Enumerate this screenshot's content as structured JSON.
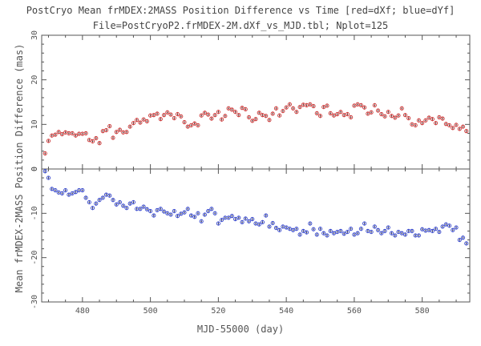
{
  "title": "PostCryo Mean frMDEX:2MASS Position Difference vs Time [red=dXf; blue=dYf]",
  "subtitle": "File=PostCryoP2.frMDEX-2M.dXf_vs_MJD.tbl; Nplot=125",
  "xlabel": "MJD-55000 (day)",
  "ylabel": "Mean frMDEX-2MASS Position Difference (mas)",
  "colors": {
    "red": "#cc3333",
    "blue": "#3344cc",
    "axis": "#555555"
  },
  "chart_data": [
    {
      "type": "scatter",
      "panel": "top",
      "xlim": [
        468,
        594
      ],
      "ylim": [
        0,
        30
      ],
      "yticks": [
        0,
        10,
        20,
        30
      ],
      "xticks": [
        480,
        500,
        520,
        540,
        560,
        580
      ],
      "series": [
        {
          "color": "red",
          "x": [
            469,
            470,
            471,
            472,
            473,
            474,
            475,
            476,
            477,
            478,
            479,
            480,
            481,
            482,
            483,
            484,
            485,
            486,
            487,
            488,
            489,
            490,
            491,
            492,
            493,
            494,
            495,
            496,
            497,
            498,
            499,
            500,
            501,
            502,
            503,
            504,
            505,
            506,
            507,
            508,
            509,
            510,
            511,
            512,
            513,
            514,
            515,
            516,
            517,
            518,
            519,
            520,
            521,
            522,
            523,
            524,
            525,
            526,
            527,
            528,
            529,
            530,
            531,
            532,
            533,
            534,
            535,
            536,
            537,
            538,
            539,
            540,
            541,
            542,
            543,
            544,
            545,
            546,
            547,
            548,
            549,
            550,
            551,
            552,
            553,
            554,
            555,
            556,
            557,
            558,
            559,
            560,
            561,
            562,
            563,
            564,
            565,
            566,
            567,
            568,
            569,
            570,
            571,
            572,
            573,
            574,
            575,
            576,
            577,
            578,
            579,
            580,
            581,
            582,
            583,
            584,
            585,
            586,
            587,
            588,
            589,
            590,
            591,
            592,
            593
          ],
          "y": [
            3.5,
            6.3,
            7.5,
            7.7,
            8.3,
            7.8,
            8.2,
            8.0,
            8.0,
            7.5,
            7.9,
            7.9,
            8.0,
            6.5,
            6.2,
            6.9,
            5.8,
            8.5,
            8.7,
            9.6,
            7.0,
            8.3,
            8.8,
            8.2,
            8.3,
            9.5,
            10.3,
            11.0,
            10.4,
            11.1,
            10.7,
            12.0,
            12.1,
            12.4,
            11.2,
            12.1,
            12.7,
            12.2,
            11.4,
            12.3,
            11.8,
            10.5,
            9.5,
            9.8,
            10.2,
            9.8,
            12.0,
            12.6,
            12.2,
            11.3,
            12.1,
            12.8,
            11.1,
            11.9,
            13.6,
            13.3,
            12.8,
            12.1,
            13.7,
            13.4,
            11.6,
            10.8,
            11.2,
            12.6,
            12.1,
            11.9,
            11.0,
            12.4,
            13.6,
            12.0,
            13.0,
            13.8,
            14.5,
            13.6,
            12.8,
            13.9,
            14.4,
            14.3,
            14.5,
            14.1,
            12.5,
            11.9,
            13.9,
            14.2,
            12.5,
            12.0,
            12.3,
            12.8,
            12.1,
            12.3,
            11.6,
            14.2,
            14.5,
            14.3,
            13.8,
            12.4,
            12.7,
            14.3,
            13.1,
            12.3,
            11.8,
            12.8,
            11.9,
            11.5,
            12.0,
            13.6,
            12.1,
            11.4,
            10.0,
            9.8,
            10.9,
            10.3,
            10.9,
            11.5,
            11.2,
            10.3,
            11.6,
            11.3,
            10.1,
            9.8,
            9.2,
            9.9,
            9.0,
            9.5,
            8.5
          ]
        }
      ]
    },
    {
      "type": "scatter",
      "panel": "bottom",
      "xlim": [
        468,
        594
      ],
      "ylim": [
        -30,
        0
      ],
      "yticks": [
        0,
        -10,
        -20,
        -30
      ],
      "xticks": [
        480,
        500,
        520,
        540,
        560,
        580
      ],
      "series": [
        {
          "color": "blue",
          "x": [
            469,
            470,
            471,
            472,
            473,
            474,
            475,
            476,
            477,
            478,
            479,
            480,
            481,
            482,
            483,
            484,
            485,
            486,
            487,
            488,
            489,
            490,
            491,
            492,
            493,
            494,
            495,
            496,
            497,
            498,
            499,
            500,
            501,
            502,
            503,
            504,
            505,
            506,
            507,
            508,
            509,
            510,
            511,
            512,
            513,
            514,
            515,
            516,
            517,
            518,
            519,
            520,
            521,
            522,
            523,
            524,
            525,
            526,
            527,
            528,
            529,
            530,
            531,
            532,
            533,
            534,
            535,
            536,
            537,
            538,
            539,
            540,
            541,
            542,
            543,
            544,
            545,
            546,
            547,
            548,
            549,
            550,
            551,
            552,
            553,
            554,
            555,
            556,
            557,
            558,
            559,
            560,
            561,
            562,
            563,
            564,
            565,
            566,
            567,
            568,
            569,
            570,
            571,
            572,
            573,
            574,
            575,
            576,
            577,
            578,
            579,
            580,
            581,
            582,
            583,
            584,
            585,
            586,
            587,
            588,
            589,
            590,
            591,
            592,
            593
          ],
          "y": [
            -0.5,
            -2.0,
            -4.5,
            -4.8,
            -5.3,
            -5.5,
            -4.8,
            -5.8,
            -5.5,
            -5.2,
            -4.8,
            -4.8,
            -6.5,
            -7.5,
            -8.8,
            -7.8,
            -7.0,
            -6.5,
            -5.8,
            -6.0,
            -7.0,
            -8.0,
            -7.5,
            -8.3,
            -8.8,
            -7.8,
            -7.5,
            -9.0,
            -9.0,
            -8.5,
            -9.1,
            -9.5,
            -10.5,
            -9.3,
            -9.0,
            -9.6,
            -10.0,
            -10.3,
            -9.5,
            -10.6,
            -10.1,
            -9.8,
            -9.0,
            -10.5,
            -10.8,
            -10.0,
            -11.8,
            -10.3,
            -9.5,
            -9.0,
            -10.0,
            -12.3,
            -11.5,
            -11.0,
            -11.0,
            -10.6,
            -11.3,
            -11.0,
            -12.0,
            -11.2,
            -11.8,
            -11.3,
            -12.3,
            -12.5,
            -12.0,
            -10.5,
            -13.0,
            -12.2,
            -13.3,
            -13.8,
            -13.0,
            -13.2,
            -13.5,
            -13.8,
            -13.5,
            -14.8,
            -14.0,
            -14.3,
            -12.3,
            -13.6,
            -14.8,
            -13.5,
            -14.5,
            -15.0,
            -14.0,
            -14.5,
            -14.2,
            -14.0,
            -14.6,
            -14.2,
            -13.5,
            -14.8,
            -14.5,
            -13.5,
            -12.3,
            -14.0,
            -14.2,
            -13.0,
            -13.8,
            -14.5,
            -14.0,
            -13.2,
            -14.5,
            -15.0,
            -14.2,
            -14.5,
            -14.8,
            -14.0,
            -14.0,
            -15.0,
            -15.0,
            -13.6,
            -13.9,
            -13.8,
            -14.0,
            -13.5,
            -14.2,
            -13.0,
            -12.5,
            -12.8,
            -13.8,
            -13.2,
            -16.0,
            -15.5,
            -16.8
          ]
        }
      ]
    }
  ]
}
